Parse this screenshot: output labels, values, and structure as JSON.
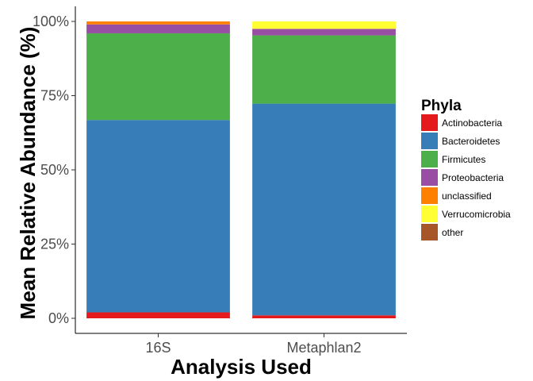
{
  "chart_data": {
    "type": "bar",
    "stacked": true,
    "categories": [
      "16S",
      "Metaphlan2"
    ],
    "series": [
      {
        "name": "Actinobacteria",
        "color": "#E41A1C",
        "values": [
          2.0,
          1.0
        ]
      },
      {
        "name": "Bacteroidetes",
        "color": "#377EB8",
        "values": [
          64.8,
          71.3
        ]
      },
      {
        "name": "Firmicutes",
        "color": "#4DAF4A",
        "values": [
          29.2,
          23.0
        ]
      },
      {
        "name": "Proteobacteria",
        "color": "#984EA3",
        "values": [
          3.0,
          2.2
        ]
      },
      {
        "name": "unclassified",
        "color": "#FF7F00",
        "values": [
          1.0,
          0.0
        ]
      },
      {
        "name": "Verrucomicrobia",
        "color": "#FFFF33",
        "values": [
          0.0,
          2.5
        ]
      },
      {
        "name": "other",
        "color": "#A65628",
        "values": [
          0.0,
          0.0
        ]
      }
    ],
    "ylim": [
      0,
      100
    ],
    "yticks": [
      0,
      25,
      50,
      75,
      100
    ],
    "yticklabels": [
      "0%",
      "25%",
      "50%",
      "75%",
      "100%"
    ],
    "xlabel": "Analysis Used",
    "ylabel": "Mean Relative Abundance (%)",
    "legend_title": "Phyla",
    "legend_position": "right",
    "grid": false
  }
}
